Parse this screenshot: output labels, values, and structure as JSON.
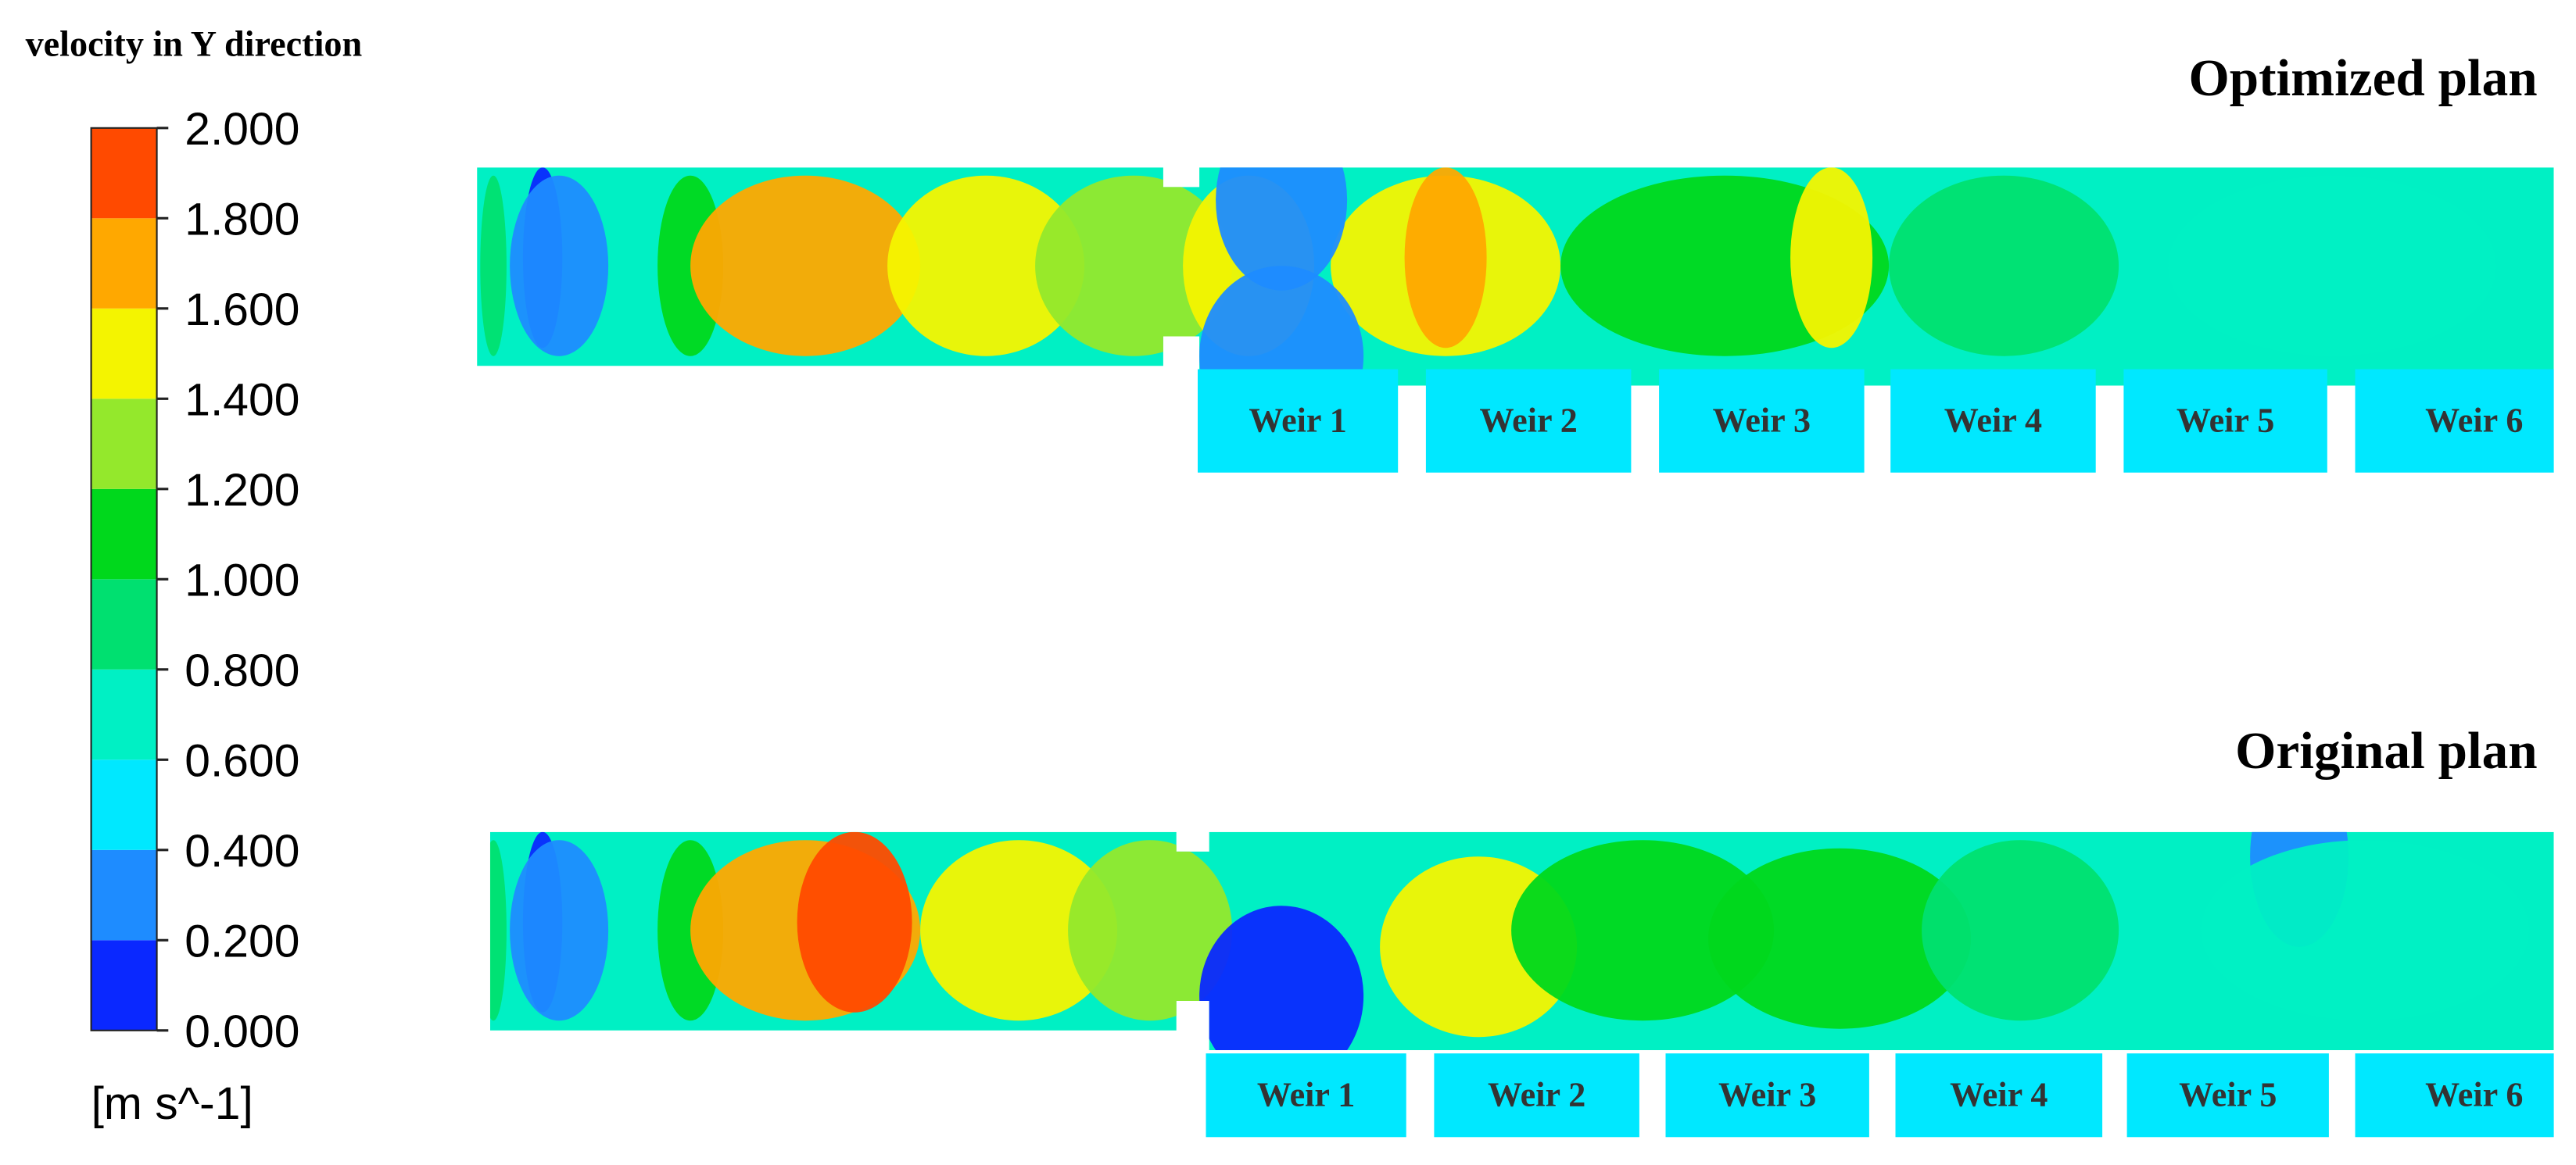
{
  "colorbar": {
    "title": "velocity in Y direction",
    "unit": "[m s^-1]",
    "ticks": [
      {
        "value": 0,
        "label": "0.000"
      },
      {
        "value": 0.2,
        "label": "0.200"
      },
      {
        "value": 0.4,
        "label": "0.400"
      },
      {
        "value": 0.6,
        "label": "0.600"
      },
      {
        "value": 0.8,
        "label": "0.800"
      },
      {
        "value": 1,
        "label": "1.000"
      },
      {
        "value": 1.2,
        "label": "1.200"
      },
      {
        "value": 1.4,
        "label": "1.400"
      },
      {
        "value": 1.6,
        "label": "1.600"
      },
      {
        "value": 1.8,
        "label": "1.800"
      },
      {
        "value": 2,
        "label": "2.000"
      }
    ],
    "colors": [
      "#0a28ff",
      "#1e8cff",
      "#00e8ff",
      "#00f0c4",
      "#00e070",
      "#00d81c",
      "#94e82c",
      "#f4f400",
      "#ffa800",
      "#ff4a00"
    ]
  },
  "panels": [
    {
      "title": "Optimized plan",
      "weirs": [
        "Weir 1",
        "Weir 2",
        "Weir 3",
        "Weir 4",
        "Weir 5",
        "Weir 6"
      ]
    },
    {
      "title": "Original plan",
      "weirs": [
        "Weir 1",
        "Weir 2",
        "Weir 3",
        "Weir 4",
        "Weir 5",
        "Weir 6"
      ]
    }
  ]
}
